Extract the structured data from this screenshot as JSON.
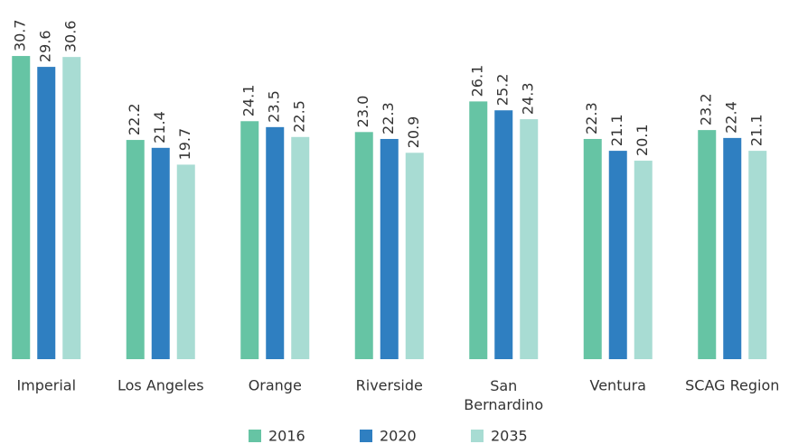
{
  "chart_data": {
    "type": "bar",
    "categories": [
      "Imperial",
      "Los Angeles",
      "Orange",
      "Riverside",
      "San Bernardino",
      "Ventura",
      "SCAG Region"
    ],
    "series": [
      {
        "name": "2016",
        "color": "#66c4a4",
        "values": [
          30.7,
          22.2,
          24.1,
          23.0,
          26.1,
          22.3,
          23.2
        ],
        "value_labels": [
          "30.7",
          "22.2",
          "24.1",
          "23.0",
          "26.1",
          "22.3",
          "23.2"
        ]
      },
      {
        "name": "2020",
        "color": "#2f7fc1",
        "values": [
          29.6,
          21.4,
          23.5,
          22.3,
          25.2,
          21.1,
          22.4
        ],
        "value_labels": [
          "29.6",
          "21.4",
          "23.5",
          "22.3",
          "25.2",
          "21.1",
          "22.4"
        ]
      },
      {
        "name": "2035",
        "color": "#a8dcd3",
        "values": [
          30.6,
          19.7,
          22.5,
          20.9,
          24.3,
          20.1,
          21.1
        ],
        "value_labels": [
          "30.6",
          "19.7",
          "22.5",
          "20.9",
          "24.3",
          "20.1",
          "21.1"
        ]
      }
    ],
    "ylim": [
      0,
      35
    ],
    "legend": "bottom"
  }
}
